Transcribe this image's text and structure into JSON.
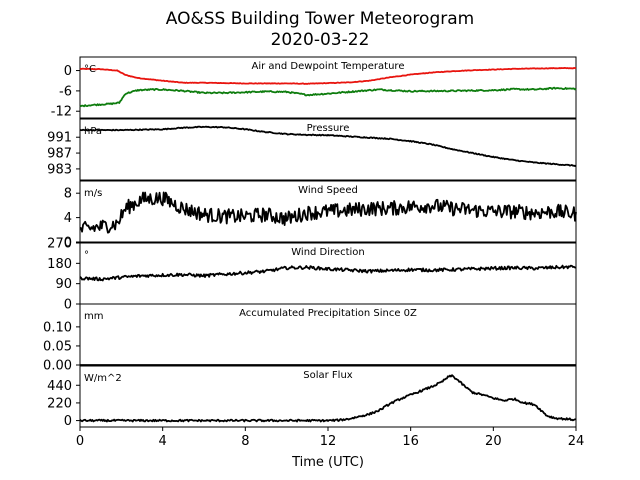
{
  "figure": {
    "title": "AO&SS Building Tower Meteorogram",
    "subtitle": "2020-03-22",
    "xlabel": "Time (UTC)"
  },
  "chart_data": {
    "type": "line",
    "title": "AO&SS Building Tower Meteorogram",
    "subtitle": "2020-03-22",
    "xlabel": "Time (UTC)",
    "xlim": [
      0,
      24
    ],
    "xticks": [
      0,
      4,
      8,
      12,
      16,
      20,
      24
    ],
    "panels": [
      {
        "id": "temperature",
        "title": "Air and Dewpoint Temperature",
        "unit": "°C",
        "ylim": [
          -14,
          4
        ],
        "yticks": [
          0,
          -6,
          -12
        ],
        "series": [
          {
            "color": "#e8140e",
            "noise": 0.08,
            "x": [
              0,
              1.0,
              1.8,
              2.2,
              2.8,
              4,
              5,
              6,
              8,
              10,
              11,
              12,
              13,
              14,
              15,
              16,
              17,
              18,
              19,
              20,
              21,
              22,
              23,
              24
            ],
            "y": [
              0.5,
              0.4,
              0.0,
              -1.3,
              -2.2,
              -3.0,
              -3.6,
              -3.6,
              -3.8,
              -3.8,
              -3.9,
              -3.7,
              -3.5,
              -3.0,
              -2.0,
              -1.2,
              -0.6,
              -0.2,
              0.1,
              0.3,
              0.5,
              0.6,
              0.7,
              0.7
            ]
          },
          {
            "color": "#0d7c0d",
            "noise": 0.2,
            "x": [
              0,
              0.5,
              1.5,
              1.9,
              2.2,
              2.8,
              3.5,
              4,
              5,
              6,
              7,
              8,
              9,
              10,
              11,
              12,
              13,
              14,
              14.5,
              15,
              16,
              18,
              20,
              21,
              22,
              23,
              24
            ],
            "y": [
              -10.5,
              -10.2,
              -9.8,
              -9.5,
              -6.8,
              -5.8,
              -5.6,
              -5.6,
              -6.0,
              -6.6,
              -6.6,
              -6.4,
              -6.2,
              -6.3,
              -7.2,
              -6.8,
              -6.3,
              -5.8,
              -5.6,
              -5.8,
              -6.1,
              -6.0,
              -5.8,
              -5.5,
              -5.6,
              -5.2,
              -5.4
            ]
          }
        ]
      },
      {
        "id": "pressure",
        "title": "Pressure",
        "unit": "hPa",
        "ylim": [
          980.2,
          995.6
        ],
        "yticks": [
          991,
          987,
          983
        ],
        "series": [
          {
            "color": "#000000",
            "noise": 0.12,
            "x": [
              0,
              2,
              3,
              4,
              5,
              6,
              7,
              8,
              9,
              10,
              11,
              12,
              13,
              14,
              15,
              16,
              17,
              18,
              19,
              20,
              21,
              22,
              23,
              24
            ],
            "y": [
              992.8,
              992.8,
              992.9,
              993.0,
              993.4,
              993.6,
              993.5,
              993.0,
              992.3,
              991.8,
              991.6,
              991.5,
              991.2,
              990.9,
              990.6,
              990.0,
              989.2,
              988.0,
              987.0,
              986.0,
              985.2,
              984.6,
              984.2,
              983.8
            ]
          }
        ]
      },
      {
        "id": "wind_speed",
        "title": "Wind Speed",
        "unit": "m/s",
        "ylim": [
          0,
          10
        ],
        "yticks": [
          8,
          4,
          0
        ],
        "series": [
          {
            "color": "#000000",
            "noise": 1.2,
            "x": [
              0,
              1,
              1.8,
              2.2,
              3,
              4,
              5,
              6,
              7,
              8,
              9,
              10,
              11,
              12,
              13,
              14,
              15,
              16,
              17,
              18,
              19,
              20,
              21,
              22,
              23,
              24
            ],
            "y": [
              2.0,
              2.5,
              3.0,
              5.5,
              7.0,
              7.2,
              5.5,
              4.5,
              4.2,
              4.2,
              4.5,
              3.8,
              4.8,
              5.0,
              5.2,
              5.5,
              5.5,
              5.8,
              6.0,
              5.5,
              5.2,
              5.0,
              5.0,
              4.8,
              5.0,
              4.6
            ]
          }
        ]
      },
      {
        "id": "wind_direction",
        "title": "Wind Direction",
        "unit": "°",
        "ylim": [
          0,
          270
        ],
        "yticks": [
          270,
          180,
          90,
          0
        ],
        "series": [
          {
            "color": "#000000",
            "noise": 7,
            "x": [
              0,
              1,
              2,
              3,
              4,
              5,
              6,
              7,
              8,
              9,
              10,
              11,
              12,
              13,
              14,
              15,
              16,
              17,
              18,
              19,
              20,
              21,
              22,
              23,
              24
            ],
            "y": [
              115,
              110,
              118,
              125,
              128,
              130,
              125,
              132,
              138,
              145,
              160,
              162,
              155,
              150,
              145,
              148,
              152,
              150,
              152,
              155,
              158,
              160,
              158,
              162,
              165
            ]
          }
        ]
      },
      {
        "id": "precipitation",
        "title": "Accumulated Precipitation Since 0Z",
        "unit": "mm",
        "ylim": [
          0,
          0.16
        ],
        "yticks": [
          0.1,
          0.05,
          0.0
        ],
        "ytick_labels": [
          "0.10",
          "0.05",
          "0.00"
        ],
        "series": [
          {
            "color": "#000000",
            "noise": 0,
            "x": [
              0,
              24
            ],
            "y": [
              0,
              0
            ]
          }
        ]
      },
      {
        "id": "solar",
        "title": "Solar Flux",
        "unit": "W/m^2",
        "ylim": [
          -80,
          680
        ],
        "yticks": [
          440,
          220,
          0
        ],
        "series": [
          {
            "color": "#000000",
            "noise": 12,
            "x": [
              0,
              12,
              12.5,
              13,
              14,
              14.5,
              15,
              15.5,
              16,
              16.5,
              17,
              17.5,
              17.8,
              18,
              18.3,
              18.6,
              19,
              19.5,
              20,
              20.5,
              21,
              21.5,
              22,
              22.3,
              22.6,
              23,
              23.5,
              24
            ],
            "y": [
              0,
              0,
              5,
              20,
              80,
              130,
              210,
              270,
              320,
              370,
              420,
              480,
              540,
              560,
              500,
              430,
              350,
              320,
              280,
              250,
              270,
              220,
              200,
              130,
              60,
              30,
              20,
              10
            ]
          }
        ]
      }
    ]
  }
}
